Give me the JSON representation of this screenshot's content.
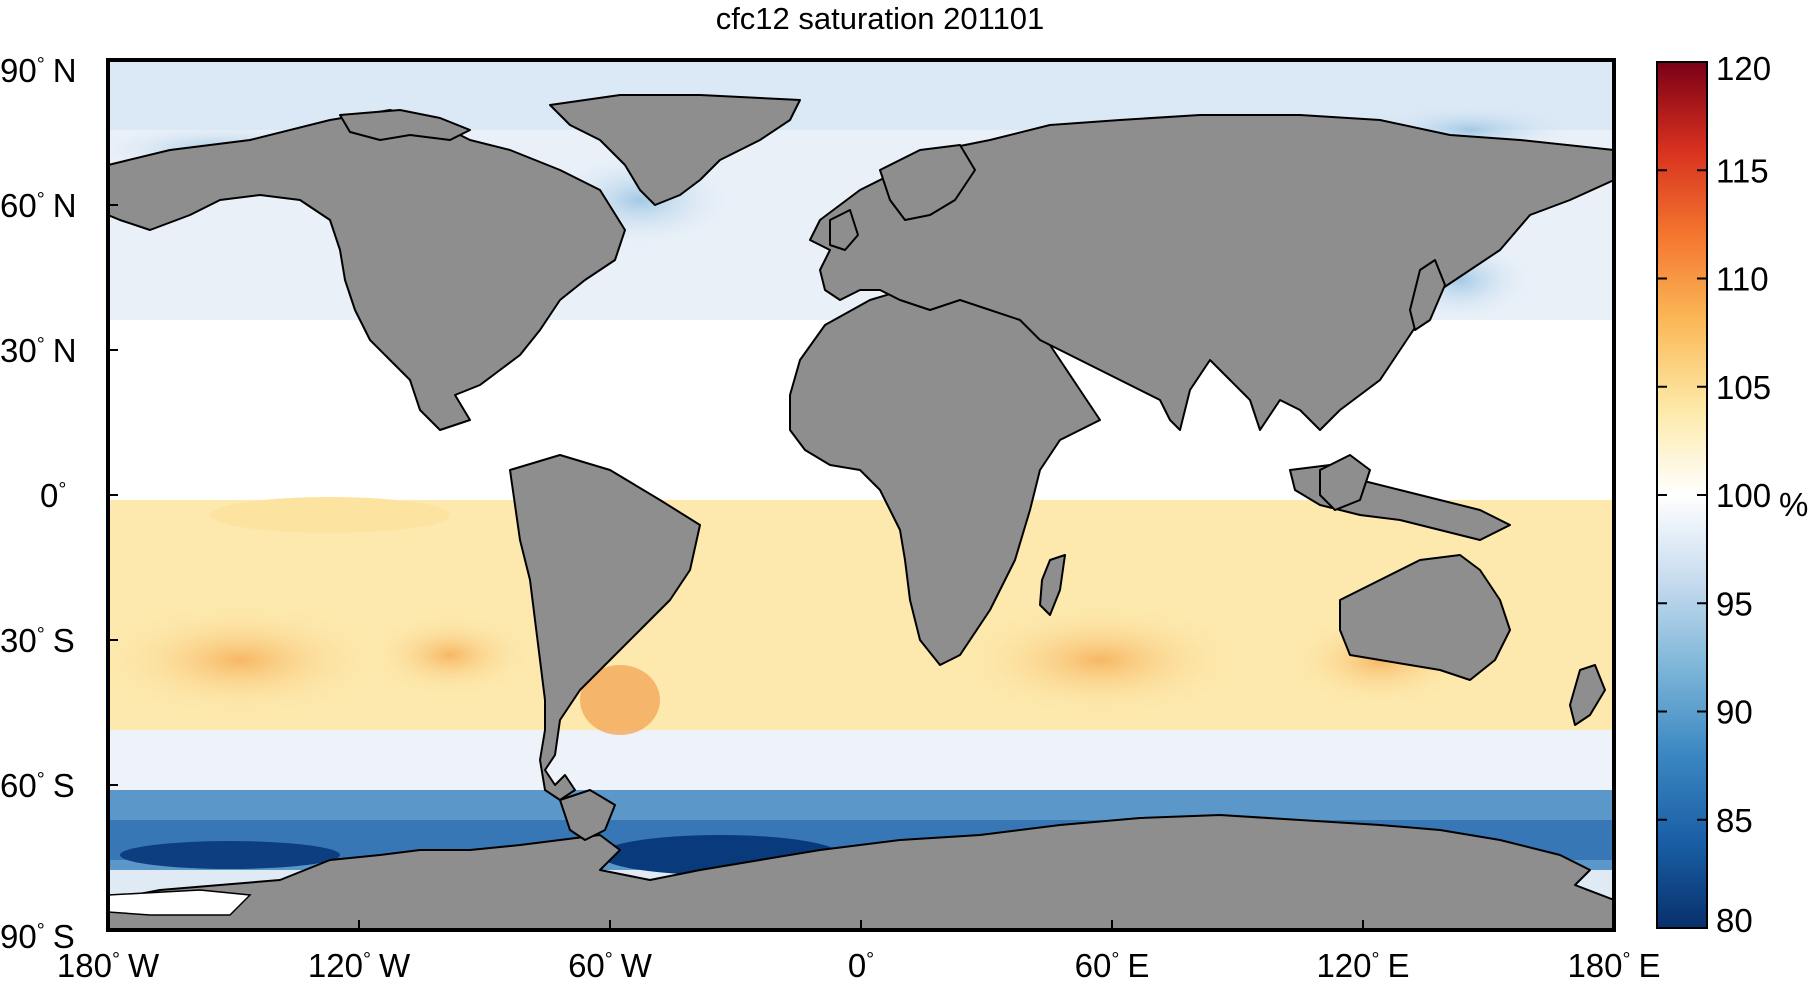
{
  "title": "cfc12 saturation 201101",
  "x_ticks": [
    {
      "deg": "180",
      "hemi": "W",
      "lon": -180
    },
    {
      "deg": "120",
      "hemi": "W",
      "lon": -120
    },
    {
      "deg": "60",
      "hemi": "W",
      "lon": -60
    },
    {
      "deg": "0",
      "hemi": "",
      "lon": 0
    },
    {
      "deg": "60",
      "hemi": "E",
      "lon": 60
    },
    {
      "deg": "120",
      "hemi": "E",
      "lon": 120
    },
    {
      "deg": "180",
      "hemi": "E",
      "lon": 180
    }
  ],
  "y_ticks": [
    {
      "deg": "90",
      "hemi": "N",
      "lat": 90
    },
    {
      "deg": "60",
      "hemi": "N",
      "lat": 60
    },
    {
      "deg": "30",
      "hemi": "N",
      "lat": 30
    },
    {
      "deg": "0",
      "hemi": "",
      "lat": 0
    },
    {
      "deg": "30",
      "hemi": "S",
      "lat": -30
    },
    {
      "deg": "60",
      "hemi": "S",
      "lat": -60
    },
    {
      "deg": "90",
      "hemi": "S",
      "lat": -90
    }
  ],
  "colorbar": {
    "min": 80,
    "max": 120,
    "ticks": [
      120,
      115,
      110,
      105,
      100,
      95,
      90,
      85,
      80
    ],
    "unit": "%",
    "colors": [
      "#08306b",
      "#1a5fa6",
      "#3b87c2",
      "#7db5d8",
      "#c6dbef",
      "#ffffff",
      "#fde9a8",
      "#fbb958",
      "#f4762f",
      "#d7301f",
      "#7a0016"
    ]
  },
  "colors": {
    "land": "#8e8e8e",
    "ocean_base": "#f3f6fb",
    "frame": "#000000"
  }
}
